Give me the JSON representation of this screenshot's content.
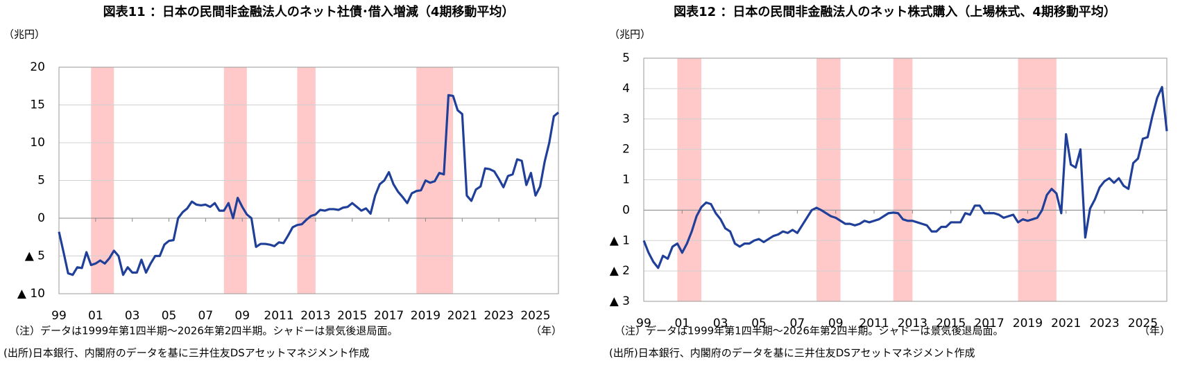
{
  "chart_data": [
    {
      "type": "line",
      "title": "図表11 ：日本の民間非金融法人のネット社債･借入増減（4期移動平均）",
      "unit_label": "（兆円）",
      "x_unit": "（年）",
      "note": "（注）データは1999年第1四半期～2026年第2四半期。シャドーは景気後退局面。",
      "source": "(出所)日本銀行、内閣府のデータを基に三井住友DSアセットマネジメント作成",
      "color": "#1f3f99",
      "shade_color": "#ffc9c9",
      "shaded_ranges": [
        [
          2000.75,
          2002
        ],
        [
          2008,
          2009.25
        ],
        [
          2012,
          2013
        ],
        [
          2018.5,
          2020.5
        ]
      ],
      "xlim": [
        1999,
        2026.25
      ],
      "xticks": [
        {
          "value": 1999,
          "label": "99"
        },
        {
          "value": 2001,
          "label": "01"
        },
        {
          "value": 2003,
          "label": "03"
        },
        {
          "value": 2005,
          "label": "05"
        },
        {
          "value": 2007,
          "label": "07"
        },
        {
          "value": 2009,
          "label": "09"
        },
        2011,
        2013,
        2015,
        2017,
        2019,
        2021,
        2023,
        2025
      ],
      "ylim": [
        -10,
        20
      ],
      "yticks": [
        {
          "value": -10,
          "label": "▲ 10"
        },
        {
          "value": -5,
          "label": "▲ 5"
        },
        0,
        5,
        10,
        15,
        20
      ],
      "x": [
        1999,
        1999.25,
        1999.5,
        1999.75,
        2000,
        2000.25,
        2000.5,
        2000.75,
        2001,
        2001.25,
        2001.5,
        2001.75,
        2002,
        2002.25,
        2002.5,
        2002.75,
        2003,
        2003.25,
        2003.5,
        2003.75,
        2004,
        2004.25,
        2004.5,
        2004.75,
        2005,
        2005.25,
        2005.5,
        2005.75,
        2006,
        2006.25,
        2006.5,
        2006.75,
        2007,
        2007.25,
        2007.5,
        2007.75,
        2008,
        2008.25,
        2008.5,
        2008.75,
        2009,
        2009.25,
        2009.5,
        2009.75,
        2010,
        2010.25,
        2010.5,
        2010.75,
        2011,
        2011.25,
        2011.5,
        2011.75,
        2012,
        2012.25,
        2012.5,
        2012.75,
        2013,
        2013.25,
        2013.5,
        2013.75,
        2014,
        2014.25,
        2014.5,
        2014.75,
        2015,
        2015.25,
        2015.5,
        2015.75,
        2016,
        2016.25,
        2016.5,
        2016.75,
        2017,
        2017.25,
        2017.5,
        2017.75,
        2018,
        2018.25,
        2018.5,
        2018.75,
        2019,
        2019.25,
        2019.5,
        2019.75,
        2020,
        2020.25,
        2020.5,
        2020.75,
        2021,
        2021.25,
        2021.5,
        2021.75,
        2022,
        2022.25,
        2022.5,
        2022.75,
        2023,
        2023.25,
        2023.5,
        2023.75,
        2024,
        2024.25,
        2024.5,
        2024.75,
        2025,
        2025.25,
        2025.5,
        2025.75,
        2026,
        2026.25
      ],
      "values": [
        -1.8,
        -4.5,
        -7.3,
        -7.5,
        -6.5,
        -6.6,
        -4.5,
        -6.2,
        -6.0,
        -5.6,
        -6.0,
        -5.3,
        -4.3,
        -5.0,
        -7.5,
        -6.5,
        -7.2,
        -7.2,
        -5.5,
        -7.2,
        -6.0,
        -5.0,
        -5.0,
        -3.5,
        -3.0,
        -2.9,
        0,
        0.8,
        1.3,
        2.2,
        1.8,
        1.7,
        1.8,
        1.5,
        2.0,
        1.0,
        1.0,
        2.0,
        0.0,
        2.7,
        1.5,
        0.5,
        0.0,
        -3.8,
        -3.4,
        -3.4,
        -3.5,
        -3.7,
        -3.2,
        -3.3,
        -2.3,
        -1.2,
        -0.9,
        -0.8,
        -0.2,
        0.3,
        0.5,
        1.1,
        1.0,
        1.2,
        1.2,
        1.1,
        1.4,
        1.5,
        2.0,
        1.5,
        1.0,
        1.3,
        0.6,
        3.0,
        4.5,
        5.0,
        6.1,
        4.5,
        3.5,
        2.8,
        2.0,
        3.3,
        3.6,
        3.7,
        5.0,
        4.7,
        4.9,
        6.0,
        5.8,
        16.3,
        16.2,
        14.3,
        13.8,
        3.0,
        2.3,
        3.8,
        4.2,
        6.6,
        6.5,
        6.2,
        5.2,
        4.1,
        5.6,
        5.8,
        7.8,
        7.6,
        4.4,
        6.0,
        3.0,
        4.2,
        7.5,
        10.0,
        13.5,
        14.0
      ]
    },
    {
      "type": "line",
      "title": "図表12 ：日本の民間非金融法人のネット株式購入（上場株式、4期移動平均）",
      "unit_label": "（兆円）",
      "x_unit": "（年）",
      "note": "（注）データは1999年第1四半期～2026年第2四半期。シャドーは景気後退局面。",
      "source": "(出所)日本銀行、内閣府のデータを基に三井住友DSアセットマネジメント作成",
      "color": "#1f3f99",
      "shade_color": "#ffc9c9",
      "shaded_ranges": [
        [
          2000.75,
          2002
        ],
        [
          2008,
          2009.25
        ],
        [
          2012,
          2013
        ],
        [
          2018.5,
          2020.5
        ]
      ],
      "xlim": [
        1999,
        2026.25
      ],
      "xticks": [
        {
          "value": 1999,
          "label": "99"
        },
        {
          "value": 2001,
          "label": "01"
        },
        {
          "value": 2003,
          "label": "03"
        },
        {
          "value": 2005,
          "label": "05"
        },
        {
          "value": 2007,
          "label": "07"
        },
        {
          "value": 2009,
          "label": "09"
        },
        2011,
        2013,
        2015,
        2017,
        2019,
        2021,
        2023,
        2025
      ],
      "ylim": [
        -3,
        5
      ],
      "yticks": [
        {
          "value": -3,
          "label": "▲ 3"
        },
        {
          "value": -2,
          "label": "▲ 2"
        },
        {
          "value": -1,
          "label": "▲ 1"
        },
        0,
        1,
        2,
        3,
        4,
        5
      ],
      "x": [
        1999,
        1999.25,
        1999.5,
        1999.75,
        2000,
        2000.25,
        2000.5,
        2000.75,
        2001,
        2001.25,
        2001.5,
        2001.75,
        2002,
        2002.25,
        2002.5,
        2002.75,
        2003,
        2003.25,
        2003.5,
        2003.75,
        2004,
        2004.25,
        2004.5,
        2004.75,
        2005,
        2005.25,
        2005.5,
        2005.75,
        2006,
        2006.25,
        2006.5,
        2006.75,
        2007,
        2007.25,
        2007.5,
        2007.75,
        2008,
        2008.25,
        2008.5,
        2008.75,
        2009,
        2009.25,
        2009.5,
        2009.75,
        2010,
        2010.25,
        2010.5,
        2010.75,
        2011,
        2011.25,
        2011.5,
        2011.75,
        2012,
        2012.25,
        2012.5,
        2012.75,
        2013,
        2013.25,
        2013.5,
        2013.75,
        2014,
        2014.25,
        2014.5,
        2014.75,
        2015,
        2015.25,
        2015.5,
        2015.75,
        2016,
        2016.25,
        2016.5,
        2016.75,
        2017,
        2017.25,
        2017.5,
        2017.75,
        2018,
        2018.25,
        2018.5,
        2018.75,
        2019,
        2019.25,
        2019.5,
        2019.75,
        2020,
        2020.25,
        2020.5,
        2020.75,
        2021,
        2021.25,
        2021.5,
        2021.75,
        2022,
        2022.25,
        2022.5,
        2022.75,
        2023,
        2023.25,
        2023.5,
        2023.75,
        2024,
        2024.25,
        2024.5,
        2024.75,
        2025,
        2025.25,
        2025.5,
        2025.75,
        2026,
        2026.25
      ],
      "values": [
        -1.0,
        -1.4,
        -1.7,
        -1.9,
        -1.5,
        -1.6,
        -1.2,
        -1.1,
        -1.4,
        -1.1,
        -0.7,
        -0.2,
        0.1,
        0.25,
        0.2,
        -0.1,
        -0.3,
        -0.6,
        -0.7,
        -1.1,
        -1.2,
        -1.1,
        -1.1,
        -1.0,
        -0.95,
        -1.05,
        -0.95,
        -0.85,
        -0.8,
        -0.7,
        -0.75,
        -0.65,
        -0.75,
        -0.5,
        -0.25,
        0.0,
        0.08,
        0.0,
        -0.1,
        -0.2,
        -0.25,
        -0.35,
        -0.45,
        -0.45,
        -0.5,
        -0.45,
        -0.35,
        -0.4,
        -0.35,
        -0.3,
        -0.2,
        -0.1,
        -0.08,
        -0.1,
        -0.3,
        -0.35,
        -0.35,
        -0.4,
        -0.45,
        -0.5,
        -0.7,
        -0.7,
        -0.55,
        -0.55,
        -0.4,
        -0.4,
        -0.4,
        -0.1,
        -0.15,
        0.15,
        0.15,
        -0.1,
        -0.1,
        -0.1,
        -0.15,
        -0.25,
        -0.2,
        -0.15,
        -0.4,
        -0.3,
        -0.35,
        -0.3,
        -0.25,
        0.0,
        0.5,
        0.7,
        0.55,
        -0.1,
        2.5,
        1.5,
        1.4,
        2.0,
        -0.9,
        0.05,
        0.35,
        0.75,
        0.95,
        1.05,
        0.9,
        1.05,
        0.8,
        0.7,
        1.55,
        1.7,
        2.35,
        2.4,
        3.1,
        3.7,
        4.05,
        2.6
      ]
    }
  ]
}
